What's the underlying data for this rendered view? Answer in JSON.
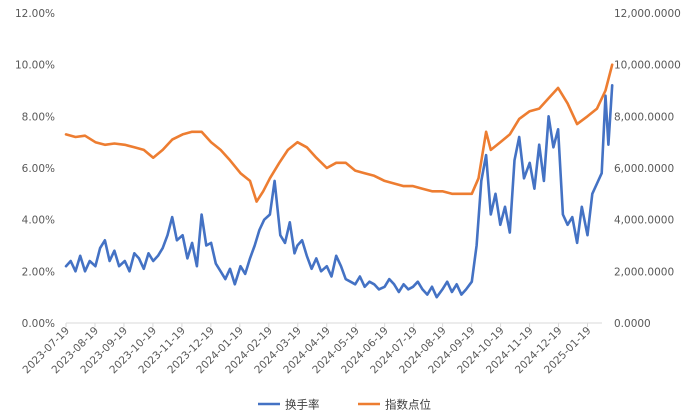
{
  "chart_data": {
    "type": "line",
    "title": "",
    "xlabel": "",
    "ylabel": "",
    "y2label": "",
    "x_ticks": [
      "2023-07-19",
      "2023-08-19",
      "2023-09-19",
      "2023-10-19",
      "2023-11-19",
      "2023-12-19",
      "2024-01-19",
      "2024-02-19",
      "2024-03-19",
      "2024-04-19",
      "2024-05-19",
      "2024-06-19",
      "2024-07-19",
      "2024-08-19",
      "2024-09-19",
      "2024-10-19",
      "2024-11-19",
      "2024-12-19",
      "2025-01-19"
    ],
    "y_left": {
      "min": 0,
      "max": 12,
      "ticks": [
        "0.00%",
        "2.00%",
        "4.00%",
        "6.00%",
        "8.00%",
        "10.00%",
        "12.00%"
      ]
    },
    "y_right": {
      "min": 0,
      "max": 12000,
      "ticks": [
        "0.0000",
        "2,000.0000",
        "4,000.0000",
        "6,000.0000",
        "8,000.0000",
        "10,000.0000",
        "12,000.0000"
      ]
    },
    "grid": false,
    "legend_position": "bottom",
    "series": [
      {
        "name": "换手率",
        "axis": "left",
        "color": "#4472C4",
        "unit": "%",
        "points": [
          [
            "2023-07-19",
            2.2
          ],
          [
            "2023-07-24",
            2.4
          ],
          [
            "2023-07-29",
            2.0
          ],
          [
            "2023-08-03",
            2.6
          ],
          [
            "2023-08-08",
            2.0
          ],
          [
            "2023-08-13",
            2.4
          ],
          [
            "2023-08-19",
            2.2
          ],
          [
            "2023-08-24",
            2.9
          ],
          [
            "2023-08-29",
            3.2
          ],
          [
            "2023-09-03",
            2.4
          ],
          [
            "2023-09-08",
            2.8
          ],
          [
            "2023-09-13",
            2.2
          ],
          [
            "2023-09-19",
            2.4
          ],
          [
            "2023-09-24",
            2.0
          ],
          [
            "2023-09-29",
            2.7
          ],
          [
            "2023-10-04",
            2.5
          ],
          [
            "2023-10-09",
            2.1
          ],
          [
            "2023-10-14",
            2.7
          ],
          [
            "2023-10-19",
            2.4
          ],
          [
            "2023-10-24",
            2.6
          ],
          [
            "2023-10-29",
            2.9
          ],
          [
            "2023-11-03",
            3.4
          ],
          [
            "2023-11-08",
            4.1
          ],
          [
            "2023-11-13",
            3.2
          ],
          [
            "2023-11-19",
            3.4
          ],
          [
            "2023-11-24",
            2.5
          ],
          [
            "2023-11-29",
            3.1
          ],
          [
            "2023-12-04",
            2.2
          ],
          [
            "2023-12-09",
            4.2
          ],
          [
            "2023-12-14",
            3.0
          ],
          [
            "2023-12-19",
            3.1
          ],
          [
            "2023-12-24",
            2.3
          ],
          [
            "2023-12-29",
            2.0
          ],
          [
            "2024-01-03",
            1.7
          ],
          [
            "2024-01-08",
            2.1
          ],
          [
            "2024-01-13",
            1.5
          ],
          [
            "2024-01-19",
            2.2
          ],
          [
            "2024-01-24",
            1.9
          ],
          [
            "2024-01-29",
            2.5
          ],
          [
            "2024-02-03",
            3.0
          ],
          [
            "2024-02-08",
            3.6
          ],
          [
            "2024-02-13",
            4.0
          ],
          [
            "2024-02-19",
            4.2
          ],
          [
            "2024-02-24",
            5.5
          ],
          [
            "2024-03-01",
            3.4
          ],
          [
            "2024-03-06",
            3.1
          ],
          [
            "2024-03-11",
            3.9
          ],
          [
            "2024-03-16",
            2.7
          ],
          [
            "2024-03-19",
            3.0
          ],
          [
            "2024-03-24",
            3.2
          ],
          [
            "2024-03-29",
            2.6
          ],
          [
            "2024-04-03",
            2.1
          ],
          [
            "2024-04-08",
            2.5
          ],
          [
            "2024-04-13",
            2.0
          ],
          [
            "2024-04-19",
            2.2
          ],
          [
            "2024-04-24",
            1.8
          ],
          [
            "2024-04-29",
            2.6
          ],
          [
            "2024-05-04",
            2.2
          ],
          [
            "2024-05-09",
            1.7
          ],
          [
            "2024-05-14",
            1.6
          ],
          [
            "2024-05-19",
            1.5
          ],
          [
            "2024-05-24",
            1.8
          ],
          [
            "2024-05-29",
            1.4
          ],
          [
            "2024-06-03",
            1.6
          ],
          [
            "2024-06-08",
            1.5
          ],
          [
            "2024-06-13",
            1.3
          ],
          [
            "2024-06-19",
            1.4
          ],
          [
            "2024-06-24",
            1.7
          ],
          [
            "2024-06-29",
            1.5
          ],
          [
            "2024-07-04",
            1.2
          ],
          [
            "2024-07-09",
            1.5
          ],
          [
            "2024-07-14",
            1.3
          ],
          [
            "2024-07-19",
            1.4
          ],
          [
            "2024-07-24",
            1.6
          ],
          [
            "2024-07-29",
            1.3
          ],
          [
            "2024-08-03",
            1.1
          ],
          [
            "2024-08-08",
            1.4
          ],
          [
            "2024-08-13",
            1.0
          ],
          [
            "2024-08-19",
            1.3
          ],
          [
            "2024-08-24",
            1.6
          ],
          [
            "2024-08-29",
            1.2
          ],
          [
            "2024-09-03",
            1.5
          ],
          [
            "2024-09-08",
            1.1
          ],
          [
            "2024-09-13",
            1.3
          ],
          [
            "2024-09-19",
            1.6
          ],
          [
            "2024-09-24",
            3.0
          ],
          [
            "2024-09-29",
            5.5
          ],
          [
            "2024-10-04",
            6.5
          ],
          [
            "2024-10-09",
            4.2
          ],
          [
            "2024-10-14",
            5.0
          ],
          [
            "2024-10-19",
            3.8
          ],
          [
            "2024-10-24",
            4.5
          ],
          [
            "2024-10-29",
            3.5
          ],
          [
            "2024-11-03",
            6.3
          ],
          [
            "2024-11-08",
            7.2
          ],
          [
            "2024-11-13",
            5.6
          ],
          [
            "2024-11-19",
            6.2
          ],
          [
            "2024-11-24",
            5.2
          ],
          [
            "2024-11-29",
            6.9
          ],
          [
            "2024-12-04",
            5.5
          ],
          [
            "2024-12-09",
            8.0
          ],
          [
            "2024-12-14",
            6.8
          ],
          [
            "2024-12-19",
            7.5
          ],
          [
            "2024-12-24",
            4.2
          ],
          [
            "2024-12-29",
            3.8
          ],
          [
            "2025-01-03",
            4.1
          ],
          [
            "2025-01-08",
            3.1
          ],
          [
            "2025-01-13",
            4.5
          ],
          [
            "2025-01-19",
            3.4
          ],
          [
            "2025-01-24",
            5.0
          ],
          [
            "2025-01-29",
            5.4
          ],
          [
            "2025-02-03",
            5.8
          ],
          [
            "2025-02-07",
            8.8
          ],
          [
            "2025-02-10",
            6.9
          ],
          [
            "2025-02-14",
            9.2
          ]
        ]
      },
      {
        "name": "指数点位",
        "axis": "right",
        "color": "#ED7D31",
        "unit": "points",
        "points": [
          [
            "2023-07-19",
            7300
          ],
          [
            "2023-07-29",
            7200
          ],
          [
            "2023-08-08",
            7250
          ],
          [
            "2023-08-19",
            7000
          ],
          [
            "2023-08-29",
            6900
          ],
          [
            "2023-09-08",
            6950
          ],
          [
            "2023-09-19",
            6900
          ],
          [
            "2023-09-29",
            6800
          ],
          [
            "2023-10-09",
            6700
          ],
          [
            "2023-10-19",
            6400
          ],
          [
            "2023-10-29",
            6700
          ],
          [
            "2023-11-08",
            7100
          ],
          [
            "2023-11-19",
            7300
          ],
          [
            "2023-11-29",
            7400
          ],
          [
            "2023-12-09",
            7400
          ],
          [
            "2023-12-19",
            7000
          ],
          [
            "2023-12-29",
            6700
          ],
          [
            "2024-01-08",
            6300
          ],
          [
            "2024-01-19",
            5800
          ],
          [
            "2024-01-29",
            5500
          ],
          [
            "2024-02-05",
            4700
          ],
          [
            "2024-02-12",
            5100
          ],
          [
            "2024-02-19",
            5600
          ],
          [
            "2024-02-29",
            6200
          ],
          [
            "2024-03-09",
            6700
          ],
          [
            "2024-03-19",
            7000
          ],
          [
            "2024-03-29",
            6800
          ],
          [
            "2024-04-08",
            6400
          ],
          [
            "2024-04-19",
            6000
          ],
          [
            "2024-04-29",
            6200
          ],
          [
            "2024-05-09",
            6200
          ],
          [
            "2024-05-19",
            5900
          ],
          [
            "2024-05-29",
            5800
          ],
          [
            "2024-06-08",
            5700
          ],
          [
            "2024-06-19",
            5500
          ],
          [
            "2024-06-29",
            5400
          ],
          [
            "2024-07-09",
            5300
          ],
          [
            "2024-07-19",
            5300
          ],
          [
            "2024-07-29",
            5200
          ],
          [
            "2024-08-08",
            5100
          ],
          [
            "2024-08-19",
            5100
          ],
          [
            "2024-08-29",
            5000
          ],
          [
            "2024-09-08",
            5000
          ],
          [
            "2024-09-19",
            5000
          ],
          [
            "2024-09-26",
            5600
          ],
          [
            "2024-10-04",
            7400
          ],
          [
            "2024-10-09",
            6700
          ],
          [
            "2024-10-19",
            7000
          ],
          [
            "2024-10-29",
            7300
          ],
          [
            "2024-11-08",
            7900
          ],
          [
            "2024-11-19",
            8200
          ],
          [
            "2024-11-29",
            8300
          ],
          [
            "2024-12-09",
            8700
          ],
          [
            "2024-12-19",
            9100
          ],
          [
            "2024-12-29",
            8500
          ],
          [
            "2025-01-08",
            7700
          ],
          [
            "2025-01-19",
            8000
          ],
          [
            "2025-01-29",
            8300
          ],
          [
            "2025-02-07",
            9000
          ],
          [
            "2025-02-14",
            10000
          ]
        ]
      }
    ]
  }
}
